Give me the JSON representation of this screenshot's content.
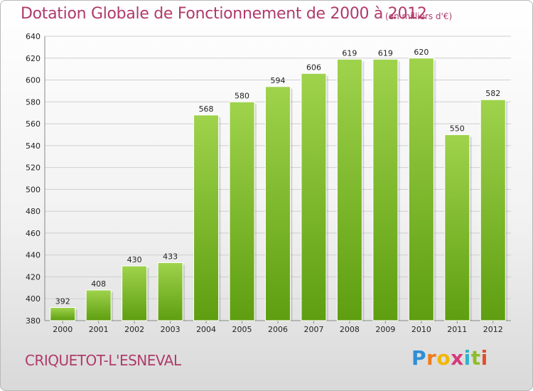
{
  "header": {
    "title": "Dotation Globale de Fonctionnement de 2000 à 2012",
    "unit": "(en milliers d'€)"
  },
  "footer": {
    "commune": "CRIQUETOT-L'ESNEVAL",
    "logo_letters": [
      "P",
      "r",
      "o",
      "x",
      "i",
      "t",
      "i"
    ],
    "logo_colors": [
      "#2f8fd6",
      "#f07c1b",
      "#f2b705",
      "#d63a7a",
      "#2fb3c9",
      "#8dbd2c",
      "#e04e2c"
    ]
  },
  "colors": {
    "bar_top": "#9fd34c",
    "bar_bottom": "#5e9e10",
    "grid": "#cfcfcf"
  },
  "chart_data": {
    "type": "bar",
    "title": "Dotation Globale de Fonctionnement de 2000 à 2012",
    "categories": [
      "2000",
      "2001",
      "2002",
      "2003",
      "2004",
      "2005",
      "2006",
      "2007",
      "2008",
      "2009",
      "2010",
      "2011",
      "2012"
    ],
    "values": [
      392,
      408,
      430,
      433,
      568,
      580,
      594,
      606,
      619,
      619,
      620,
      550,
      582
    ],
    "ylim": [
      380,
      640
    ],
    "yticks": [
      380,
      400,
      420,
      440,
      460,
      480,
      500,
      520,
      540,
      560,
      580,
      600,
      620,
      640
    ],
    "grid": true,
    "xlabel": "",
    "ylabel": ""
  }
}
